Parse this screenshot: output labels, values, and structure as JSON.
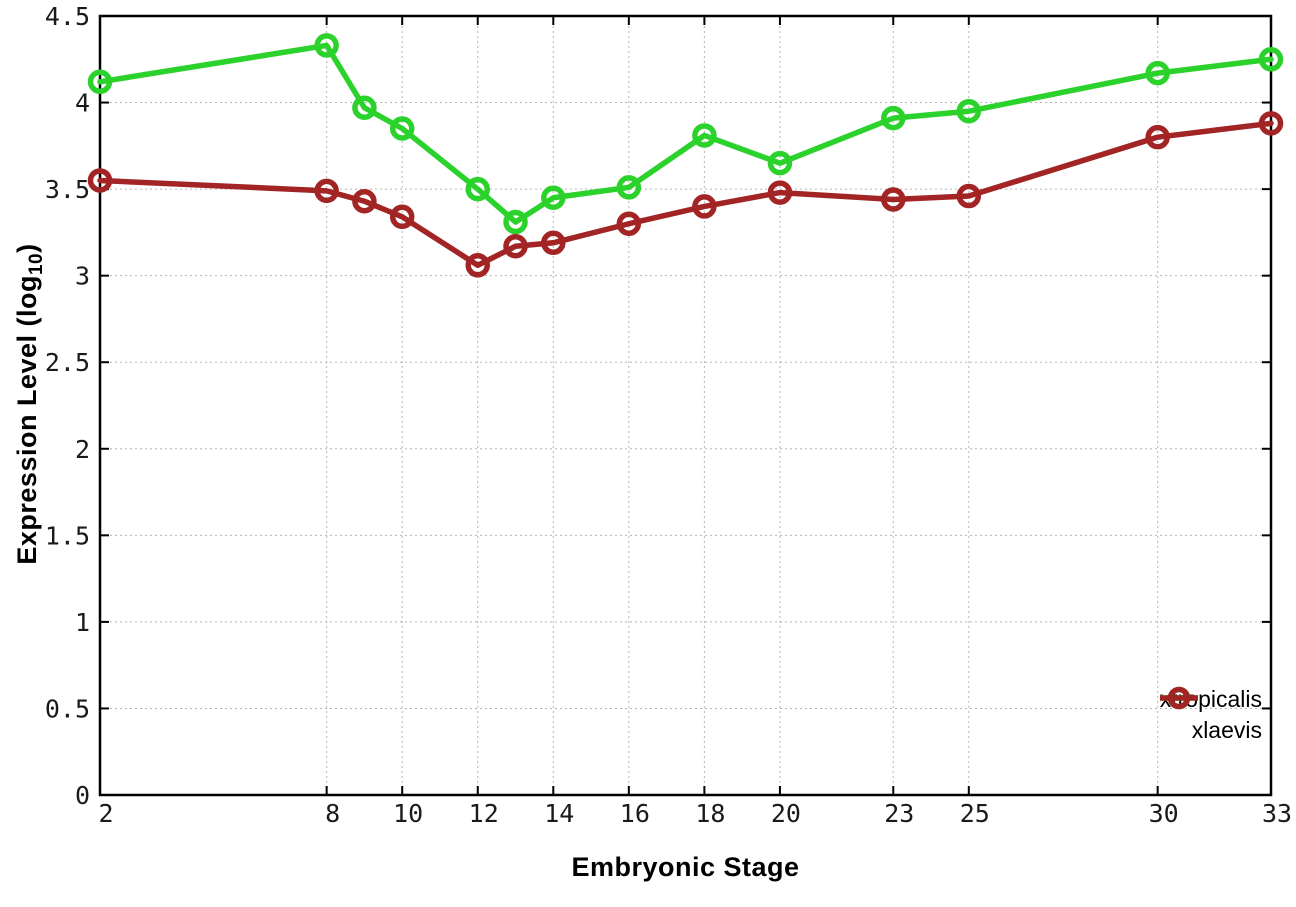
{
  "chart_data": {
    "type": "line",
    "title": "",
    "xlabel": "Embryonic Stage",
    "ylabel": "Expression Level (log10)",
    "ylabel_parts": {
      "pre": "Expression Level (log",
      "sub": "10",
      "post": ")"
    },
    "x": [
      2,
      8,
      9,
      10,
      12,
      13,
      14,
      16,
      18,
      20,
      23,
      25,
      30,
      33
    ],
    "series": [
      {
        "name": "xtropicalis",
        "color": "#2bd22b",
        "values": [
          4.12,
          4.33,
          3.97,
          3.85,
          3.5,
          3.31,
          3.45,
          3.51,
          3.81,
          3.65,
          3.91,
          3.95,
          4.17,
          4.25
        ]
      },
      {
        "name": "xlaevis",
        "color": "#a22424",
        "values": [
          3.55,
          3.49,
          3.43,
          3.34,
          3.06,
          3.17,
          3.19,
          3.3,
          3.4,
          3.48,
          3.44,
          3.46,
          3.8,
          3.88
        ]
      }
    ],
    "xticks": [
      2,
      8,
      10,
      12,
      14,
      16,
      18,
      20,
      23,
      25,
      30,
      33
    ],
    "xtick_labels": [
      "2",
      "8",
      "10",
      "12",
      "14",
      "16",
      "18",
      "20",
      "23",
      "25",
      "30",
      "33"
    ],
    "yticks": [
      0,
      0.5,
      1,
      1.5,
      2,
      2.5,
      3,
      3.5,
      4,
      4.5
    ],
    "ytick_labels": [
      "0",
      "0.5",
      "1",
      "1.5",
      "2",
      "2.5",
      "3",
      "3.5",
      "4",
      "4.5"
    ],
    "xlim": [
      2,
      33
    ],
    "ylim": [
      0,
      4.5
    ],
    "grid": true,
    "legend_position": "bottom-right"
  },
  "style": {
    "background": "#ffffff",
    "axis_color": "#000000",
    "grid_color": "#b5b5b5",
    "tick_label_color": "#1a1a1a"
  }
}
